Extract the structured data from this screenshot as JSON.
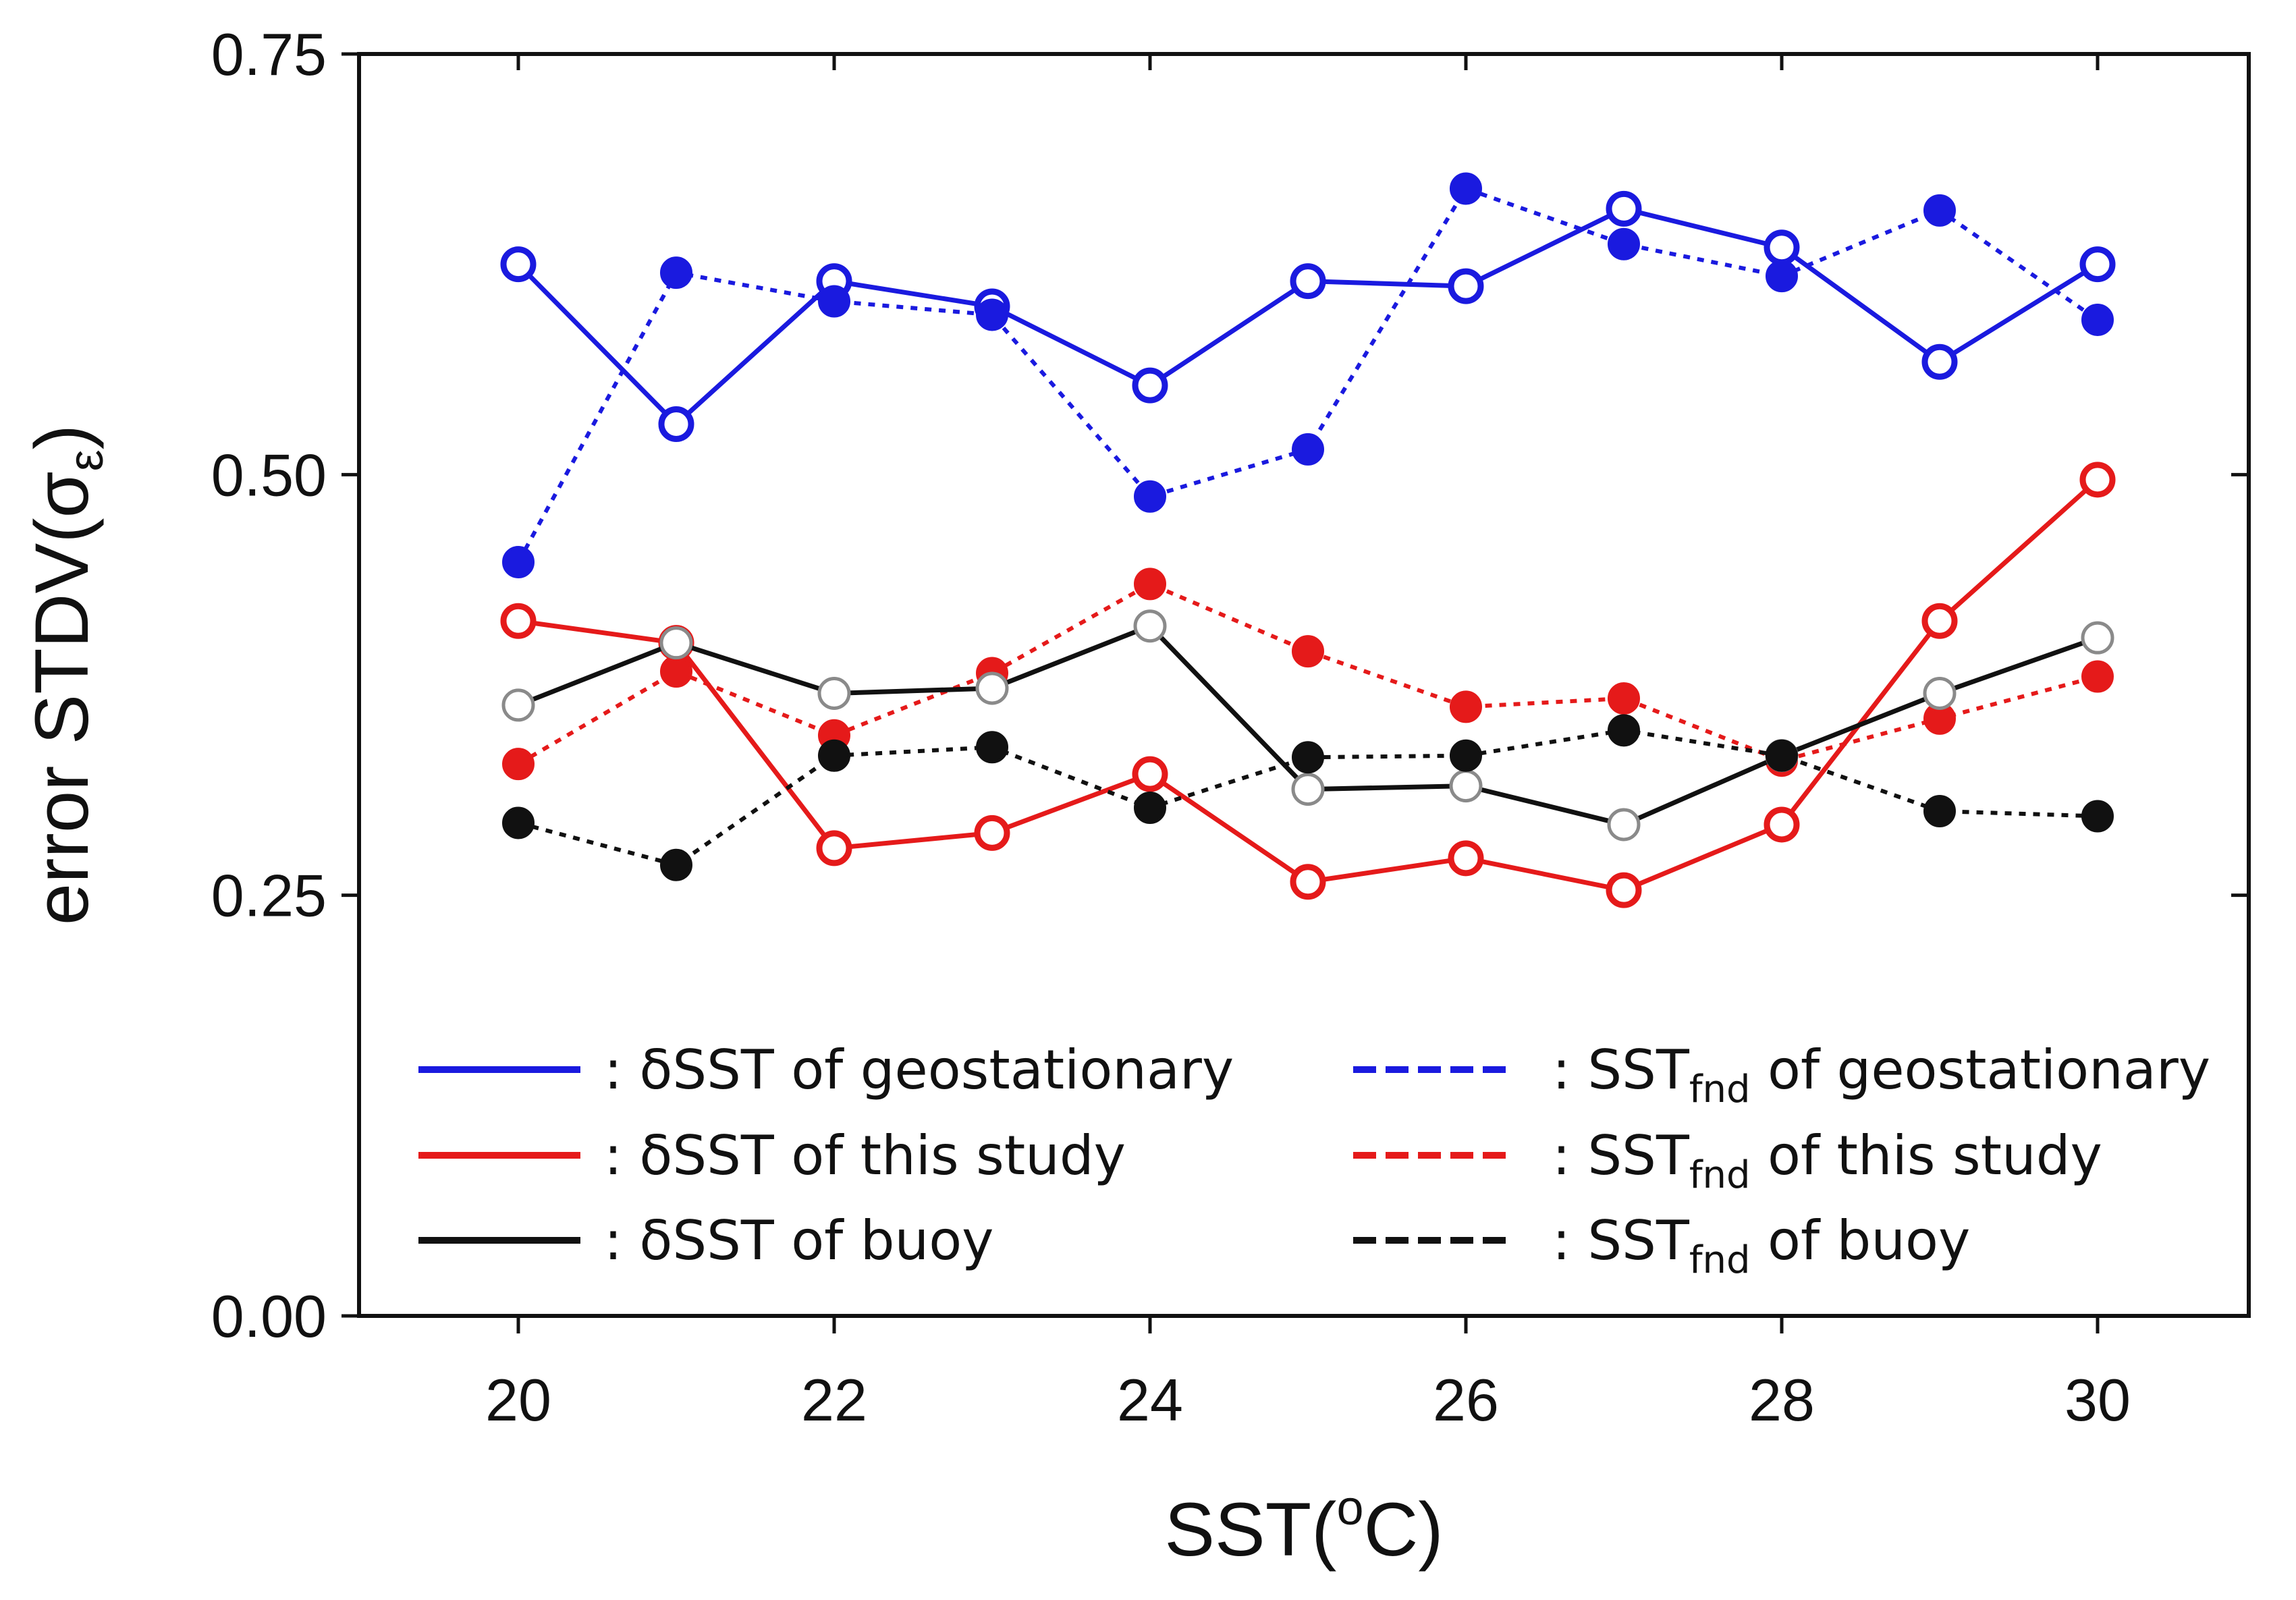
{
  "chart_data": {
    "type": "line",
    "title": "",
    "xlabel": {
      "main": "SST(",
      "sup": "o",
      "tail": "C)"
    },
    "ylabel": {
      "main": "error STDV(σ",
      "sub": "ε",
      "tail": ")"
    },
    "xlim": [
      19,
      31
    ],
    "ylim": [
      0,
      0.75
    ],
    "x_ticks": [
      20,
      22,
      24,
      26,
      28,
      30
    ],
    "x_tick_labels": [
      "20",
      "22",
      "24",
      "26",
      "28",
      "30"
    ],
    "y_ticks": [
      0,
      0.25,
      0.5,
      0.75
    ],
    "y_tick_labels": [
      "0.00",
      "0.25",
      "0.50",
      "0.75"
    ],
    "grid": false,
    "legend_position": "bottom",
    "x": [
      20,
      21,
      22,
      23,
      24,
      25,
      26,
      27,
      28,
      29,
      30
    ],
    "series": [
      {
        "name": "δSST of geostationary",
        "prefix": ": δSST of geostationary",
        "color": "#1a1adf",
        "style": "solid",
        "marker": "open",
        "values": [
          0.625,
          0.53,
          0.615,
          0.6,
          0.553,
          0.615,
          0.612,
          0.658,
          0.635,
          0.567,
          0.625
        ]
      },
      {
        "name": "SST_fnd of geostationary",
        "prefix": ": SST",
        "sub": "fnd",
        "suffix": " of geostationary",
        "color": "#1a1adf",
        "style": "dotted",
        "marker": "filled",
        "values": [
          0.448,
          0.62,
          0.603,
          0.595,
          0.487,
          0.515,
          0.67,
          0.637,
          0.618,
          0.657,
          0.592
        ]
      },
      {
        "name": "δSST of this study",
        "prefix": ": δSST of this study",
        "color": "#e51a1a",
        "style": "solid",
        "marker": "open",
        "values": [
          0.413,
          0.4,
          0.278,
          0.287,
          0.322,
          0.258,
          0.272,
          0.253,
          0.292,
          0.413,
          0.497
        ]
      },
      {
        "name": "SST_fnd of this study",
        "prefix": ": SST",
        "sub": "fnd",
        "suffix": " of this study",
        "color": "#e51a1a",
        "style": "dotted",
        "marker": "filled",
        "values": [
          0.328,
          0.383,
          0.345,
          0.382,
          0.435,
          0.395,
          0.362,
          0.367,
          0.33,
          0.355,
          0.38
        ]
      },
      {
        "name": "δSST of buoy",
        "prefix": ": δSST of buoy",
        "color": "#111111",
        "style": "solid",
        "marker": "open",
        "values": [
          0.363,
          0.4,
          0.37,
          0.373,
          0.41,
          0.313,
          0.315,
          0.292,
          0.333,
          0.37,
          0.403
        ]
      },
      {
        "name": "SST_fnd of buoy",
        "prefix": ": SST",
        "sub": "fnd",
        "suffix": " of buoy",
        "color": "#111111",
        "style": "dotted",
        "marker": "filled",
        "values": [
          0.293,
          0.268,
          0.333,
          0.338,
          0.302,
          0.332,
          0.333,
          0.348,
          0.333,
          0.3,
          0.297
        ]
      }
    ]
  }
}
